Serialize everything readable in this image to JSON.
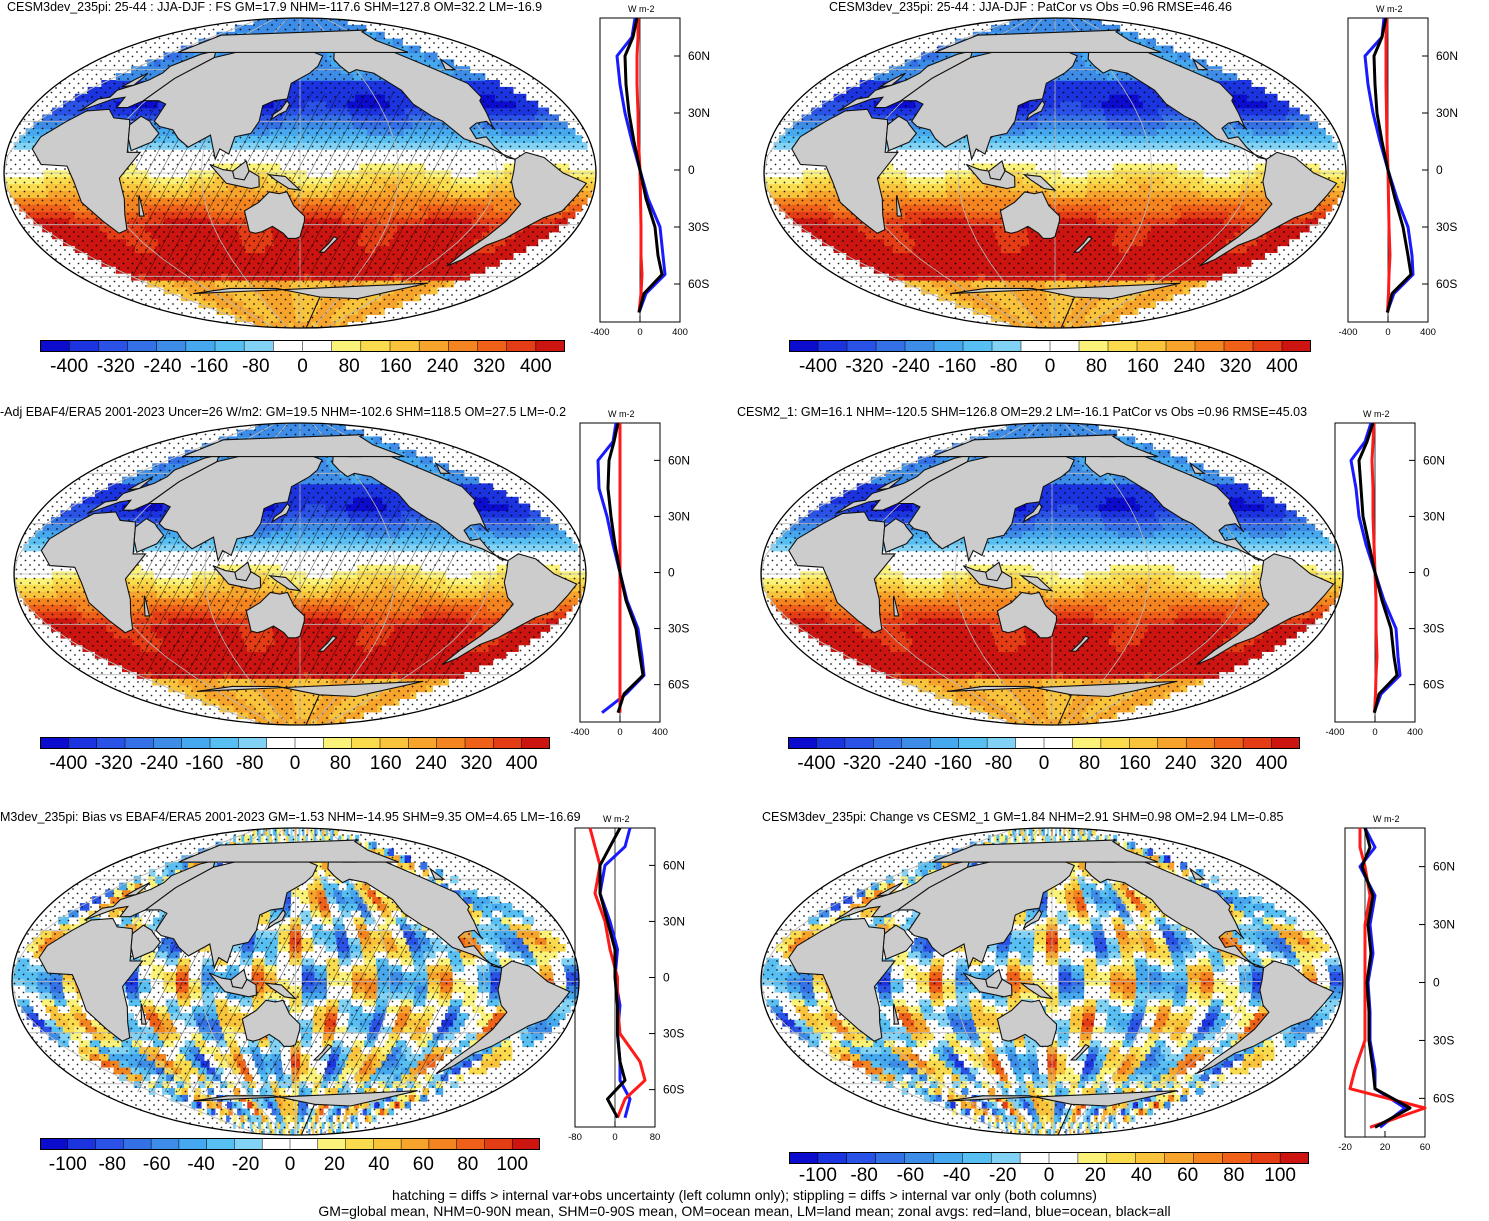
{
  "palette": {
    "colors": [
      "#0c0ccf",
      "#1c34e0",
      "#2a52e6",
      "#3470e6",
      "#3d8de8",
      "#46a8ee",
      "#58bff2",
      "#82d2f6",
      "#ffffff",
      "#ffffff",
      "#fbf27a",
      "#fadb4e",
      "#f9c33c",
      "#f6a42c",
      "#f48420",
      "#ef6018",
      "#e43c14",
      "#cc1410"
    ],
    "land": "#cccccc",
    "landEdge": "#111111"
  },
  "zonalColors": {
    "land": "#ff1a1a",
    "ocean": "#1a1aff",
    "all": "#000000"
  },
  "panels": [
    {
      "id": "model",
      "title": "CESM3dev_235pi: 25-44 : JJA-DJF : FS GM=17.9 NHM=-117.6 SHM=127.8 OM=32.2 LM=-16.9",
      "range": [
        -400,
        400
      ],
      "hatch": true,
      "stipple": true,
      "cbarLabels": [
        "-400",
        "-320",
        "-240",
        "-160",
        "-80",
        "0",
        "80",
        "160",
        "240",
        "320",
        "400"
      ],
      "zonal": {
        "unit": "W m-2",
        "xTicks": [
          "-400",
          "0",
          "400"
        ],
        "latLabels": [
          "60N",
          "30N",
          "0",
          "30S",
          "60S"
        ],
        "ocean": [
          [
            80,
            -50
          ],
          [
            70,
            -80
          ],
          [
            60,
            -230
          ],
          [
            45,
            -200
          ],
          [
            30,
            -150
          ],
          [
            15,
            -80
          ],
          [
            0,
            0
          ],
          [
            -15,
            80
          ],
          [
            -30,
            200
          ],
          [
            -45,
            230
          ],
          [
            -55,
            250
          ],
          [
            -65,
            60
          ],
          [
            -75,
            -10
          ]
        ],
        "land": [
          [
            80,
            -20
          ],
          [
            70,
            -20
          ],
          [
            60,
            -30
          ],
          [
            45,
            -30
          ],
          [
            30,
            -20
          ],
          [
            15,
            -15
          ],
          [
            0,
            0
          ],
          [
            -15,
            5
          ],
          [
            -30,
            10
          ],
          [
            -45,
            10
          ],
          [
            -55,
            20
          ],
          [
            -65,
            10
          ],
          [
            -75,
            -10
          ]
        ],
        "all": [
          [
            80,
            -30
          ],
          [
            70,
            -70
          ],
          [
            60,
            -150
          ],
          [
            45,
            -140
          ],
          [
            30,
            -110
          ],
          [
            15,
            -60
          ],
          [
            0,
            0
          ],
          [
            -15,
            60
          ],
          [
            -30,
            150
          ],
          [
            -45,
            180
          ],
          [
            -55,
            220
          ],
          [
            -65,
            40
          ],
          [
            -75,
            -10
          ]
        ]
      }
    },
    {
      "id": "model_vs_obs",
      "title": "CESM3dev_235pi: 25-44 : JJA-DJF : PatCor vs Obs =0.96 RMSE=46.46",
      "range": [
        -400,
        400
      ],
      "hatch": false,
      "stipple": true,
      "cbarLabels": [
        "-400",
        "-320",
        "-240",
        "-160",
        "-80",
        "0",
        "80",
        "160",
        "240",
        "320",
        "400"
      ],
      "zonal": {
        "unit": "W m-2",
        "xTicks": [
          "-400",
          "0",
          "400"
        ],
        "latLabels": [
          "60N",
          "30N",
          "0",
          "30S",
          "60S"
        ],
        "ocean": [
          [
            80,
            -40
          ],
          [
            70,
            -60
          ],
          [
            60,
            -230
          ],
          [
            45,
            -200
          ],
          [
            30,
            -150
          ],
          [
            15,
            -80
          ],
          [
            0,
            0
          ],
          [
            -15,
            90
          ],
          [
            -30,
            200
          ],
          [
            -45,
            240
          ],
          [
            -55,
            250
          ],
          [
            -65,
            60
          ],
          [
            -75,
            -10
          ]
        ],
        "land": [
          [
            80,
            -10
          ],
          [
            70,
            -20
          ],
          [
            60,
            -20
          ],
          [
            45,
            -20
          ],
          [
            30,
            -15
          ],
          [
            15,
            -10
          ],
          [
            0,
            0
          ],
          [
            -15,
            5
          ],
          [
            -30,
            10
          ],
          [
            -45,
            20
          ],
          [
            -55,
            10
          ],
          [
            -65,
            5
          ],
          [
            -75,
            -5
          ]
        ],
        "all": [
          [
            80,
            -20
          ],
          [
            70,
            -60
          ],
          [
            60,
            -140
          ],
          [
            45,
            -130
          ],
          [
            30,
            -110
          ],
          [
            15,
            -60
          ],
          [
            0,
            0
          ],
          [
            -15,
            70
          ],
          [
            -30,
            150
          ],
          [
            -45,
            200
          ],
          [
            -55,
            230
          ],
          [
            -65,
            40
          ],
          [
            -75,
            -5
          ]
        ]
      }
    },
    {
      "id": "obs",
      "title": "-Adj EBAF4/ERA5 2001-2023 Uncer=26 W/m2: GM=19.5 NHM=-102.6 SHM=118.5 OM=27.5 LM=-0.2",
      "range": [
        -400,
        400
      ],
      "hatch": true,
      "stipple": true,
      "cbarLabels": [
        "-400",
        "-320",
        "-240",
        "-160",
        "-80",
        "0",
        "80",
        "160",
        "240",
        "320",
        "400"
      ],
      "zonal": {
        "unit": "W m-2",
        "xTicks": [
          "-400",
          "0",
          "400"
        ],
        "latLabels": [
          "60N",
          "30N",
          "0",
          "30S",
          "60S"
        ],
        "ocean": [
          [
            80,
            -40
          ],
          [
            70,
            -70
          ],
          [
            60,
            -220
          ],
          [
            45,
            -210
          ],
          [
            30,
            -130
          ],
          [
            15,
            -70
          ],
          [
            0,
            0
          ],
          [
            -15,
            70
          ],
          [
            -30,
            180
          ],
          [
            -45,
            220
          ],
          [
            -55,
            240
          ],
          [
            -65,
            60
          ],
          [
            -75,
            -180
          ]
        ],
        "land": [
          [
            80,
            0
          ],
          [
            70,
            0
          ],
          [
            60,
            0
          ],
          [
            45,
            0
          ],
          [
            30,
            0
          ],
          [
            15,
            0
          ],
          [
            0,
            0
          ],
          [
            -15,
            0
          ],
          [
            -30,
            0
          ],
          [
            -45,
            0
          ],
          [
            -55,
            0
          ],
          [
            -65,
            0
          ],
          [
            -75,
            0
          ]
        ],
        "all": [
          [
            80,
            -20
          ],
          [
            70,
            -60
          ],
          [
            60,
            -110
          ],
          [
            45,
            -120
          ],
          [
            30,
            -90
          ],
          [
            15,
            -50
          ],
          [
            0,
            0
          ],
          [
            -15,
            60
          ],
          [
            -30,
            160
          ],
          [
            -45,
            200
          ],
          [
            -55,
            230
          ],
          [
            -65,
            40
          ],
          [
            -75,
            -20
          ]
        ]
      }
    },
    {
      "id": "cesm2",
      "title": "CESM2_1: GM=16.1 NHM=-120.5 SHM=126.8 OM=29.2 LM=-16.1 PatCor vs Obs =0.96 RMSE=45.03",
      "range": [
        -400,
        400
      ],
      "hatch": false,
      "stipple": true,
      "cbarLabels": [
        "-400",
        "-320",
        "-240",
        "-160",
        "-80",
        "0",
        "80",
        "160",
        "240",
        "320",
        "400"
      ],
      "zonal": {
        "unit": "W m-2",
        "xTicks": [
          "-400",
          "0",
          "400"
        ],
        "latLabels": [
          "60N",
          "30N",
          "0",
          "30S",
          "60S"
        ],
        "ocean": [
          [
            80,
            -40
          ],
          [
            70,
            -100
          ],
          [
            60,
            -240
          ],
          [
            45,
            -190
          ],
          [
            30,
            -160
          ],
          [
            15,
            -90
          ],
          [
            0,
            0
          ],
          [
            -15,
            90
          ],
          [
            -30,
            210
          ],
          [
            -45,
            230
          ],
          [
            -55,
            250
          ],
          [
            -65,
            60
          ],
          [
            -75,
            -10
          ]
        ],
        "land": [
          [
            80,
            -10
          ],
          [
            70,
            -20
          ],
          [
            60,
            -30
          ],
          [
            45,
            -20
          ],
          [
            30,
            -20
          ],
          [
            15,
            -10
          ],
          [
            0,
            0
          ],
          [
            -15,
            10
          ],
          [
            -30,
            10
          ],
          [
            -45,
            20
          ],
          [
            -55,
            10
          ],
          [
            -65,
            5
          ],
          [
            -75,
            -5
          ]
        ],
        "all": [
          [
            80,
            -20
          ],
          [
            70,
            -80
          ],
          [
            60,
            -160
          ],
          [
            45,
            -140
          ],
          [
            30,
            -120
          ],
          [
            15,
            -60
          ],
          [
            0,
            0
          ],
          [
            -15,
            70
          ],
          [
            -30,
            160
          ],
          [
            -45,
            190
          ],
          [
            -55,
            220
          ],
          [
            -65,
            40
          ],
          [
            -75,
            -5
          ]
        ]
      }
    },
    {
      "id": "bias",
      "title": "M3dev_235pi: Bias vs EBAF4/ERA5 2001-2023 GM=-1.53 NHM=-14.95 SHM=9.35 OM=4.65 LM=-16.69",
      "range": [
        -100,
        100
      ],
      "hatch": true,
      "stipple": true,
      "cbarLabels": [
        "-100",
        "-80",
        "-60",
        "-40",
        "-20",
        "0",
        "20",
        "40",
        "60",
        "80",
        "100"
      ],
      "zonal": {
        "unit": "W m-2",
        "xTicks": [
          "-80",
          "0",
          "80"
        ],
        "latLabels": [
          "60N",
          "30N",
          "0",
          "30S",
          "60S"
        ],
        "ocean": [
          [
            80,
            30
          ],
          [
            70,
            20
          ],
          [
            60,
            -20
          ],
          [
            45,
            -30
          ],
          [
            30,
            -10
          ],
          [
            15,
            5
          ],
          [
            0,
            0
          ],
          [
            -15,
            10
          ],
          [
            -30,
            5
          ],
          [
            -45,
            10
          ],
          [
            -55,
            10
          ],
          [
            -65,
            30
          ],
          [
            -75,
            20
          ]
        ],
        "land": [
          [
            80,
            -50
          ],
          [
            70,
            -40
          ],
          [
            60,
            -30
          ],
          [
            45,
            -40
          ],
          [
            30,
            -20
          ],
          [
            15,
            -10
          ],
          [
            0,
            5
          ],
          [
            -15,
            5
          ],
          [
            -30,
            10
          ],
          [
            -45,
            50
          ],
          [
            -55,
            60
          ],
          [
            -65,
            20
          ],
          [
            -75,
            5
          ]
        ],
        "all": [
          [
            80,
            10
          ],
          [
            70,
            -10
          ],
          [
            60,
            -30
          ],
          [
            45,
            -30
          ],
          [
            30,
            -15
          ],
          [
            15,
            0
          ],
          [
            0,
            0
          ],
          [
            -15,
            5
          ],
          [
            -30,
            5
          ],
          [
            -45,
            10
          ],
          [
            -55,
            20
          ],
          [
            -65,
            -15
          ],
          [
            -75,
            5
          ]
        ]
      }
    },
    {
      "id": "change",
      "title": "CESM3dev_235pi: Change vs CESM2_1 GM=1.84 NHM=2.91 SHM=0.98 OM=2.94 LM=-0.85",
      "range": [
        -100,
        100
      ],
      "hatch": false,
      "stipple": true,
      "cbarLabels": [
        "-100",
        "-80",
        "-60",
        "-40",
        "-20",
        "0",
        "20",
        "40",
        "60",
        "80",
        "100"
      ],
      "zonal": {
        "unit": "W m-2",
        "xTicks": [
          "-20",
          "20",
          "60"
        ],
        "latLabels": [
          "60N",
          "30N",
          "0",
          "30S",
          "60S"
        ],
        "ocean": [
          [
            80,
            0
          ],
          [
            70,
            10
          ],
          [
            60,
            -5
          ],
          [
            45,
            10
          ],
          [
            30,
            5
          ],
          [
            15,
            8
          ],
          [
            0,
            3
          ],
          [
            -15,
            5
          ],
          [
            -30,
            5
          ],
          [
            -45,
            10
          ],
          [
            -55,
            10
          ],
          [
            -65,
            40
          ],
          [
            -75,
            15
          ]
        ],
        "land": [
          [
            80,
            -5
          ],
          [
            70,
            -5
          ],
          [
            60,
            0
          ],
          [
            45,
            5
          ],
          [
            30,
            0
          ],
          [
            15,
            0
          ],
          [
            0,
            0
          ],
          [
            -15,
            0
          ],
          [
            -30,
            0
          ],
          [
            -45,
            -10
          ],
          [
            -55,
            -15
          ],
          [
            -65,
            60
          ],
          [
            -75,
            5
          ]
        ],
        "all": [
          [
            80,
            0
          ],
          [
            70,
            5
          ],
          [
            60,
            -3
          ],
          [
            45,
            8
          ],
          [
            30,
            3
          ],
          [
            15,
            6
          ],
          [
            0,
            2
          ],
          [
            -15,
            4
          ],
          [
            -30,
            4
          ],
          [
            -45,
            8
          ],
          [
            -55,
            10
          ],
          [
            -65,
            45
          ],
          [
            -75,
            10
          ]
        ]
      }
    }
  ],
  "footer": {
    "line1": "hatching = diffs > internal var+obs uncertainty (left column only); stippling = diffs > internal var only (both columns)",
    "line2": "GM=global mean, NHM=0-90N mean, SHM=0-90S mean, OM=ocean mean, LM=land mean; zonal avgs: red=land, blue=ocean, black=all"
  }
}
